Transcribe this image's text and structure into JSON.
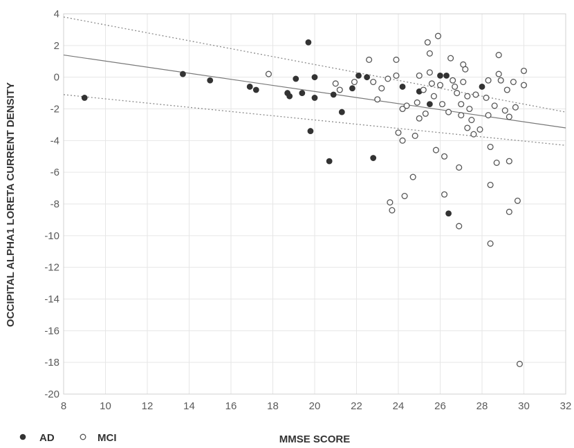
{
  "chart_data": {
    "type": "scatter",
    "title": "",
    "xlabel": "MMSE SCORE",
    "ylabel": "OCCIPITAL ALPHA1 LORETA CURRENT DENSITY",
    "xlim": [
      8,
      32
    ],
    "ylim": [
      -20,
      4
    ],
    "x_ticks": [
      8,
      10,
      12,
      14,
      16,
      18,
      20,
      22,
      24,
      26,
      28,
      30,
      32
    ],
    "y_ticks": [
      -20,
      -18,
      -16,
      -14,
      -12,
      -10,
      -8,
      -6,
      -4,
      -2,
      0,
      2,
      4
    ],
    "grid": true,
    "legend_position": "bottom-left",
    "series": [
      {
        "name": "AD",
        "marker": "filled-circle",
        "color": "#333333",
        "points": [
          [
            9,
            -1.3
          ],
          [
            13.7,
            0.2
          ],
          [
            15,
            -0.2
          ],
          [
            16.9,
            -0.6
          ],
          [
            17.2,
            -0.8
          ],
          [
            18.7,
            -1.0
          ],
          [
            18.8,
            -1.2
          ],
          [
            19.1,
            -0.1
          ],
          [
            19.4,
            -1.0
          ],
          [
            19.7,
            2.2
          ],
          [
            19.8,
            -3.4
          ],
          [
            20.0,
            0.0
          ],
          [
            20.0,
            -1.3
          ],
          [
            20.7,
            -5.3
          ],
          [
            20.9,
            -1.1
          ],
          [
            21.3,
            -2.2
          ],
          [
            21.8,
            -0.7
          ],
          [
            22.1,
            0.1
          ],
          [
            22.5,
            0.0
          ],
          [
            22.8,
            -5.1
          ],
          [
            24.2,
            -0.6
          ],
          [
            25.0,
            -0.9
          ],
          [
            25.5,
            -1.7
          ],
          [
            26.0,
            0.1
          ],
          [
            26.3,
            0.1
          ],
          [
            26.4,
            -8.6
          ],
          [
            28.0,
            -0.6
          ]
        ]
      },
      {
        "name": "MCI",
        "marker": "open-circle",
        "color": "#555555",
        "points": [
          [
            17.8,
            0.2
          ],
          [
            21.0,
            -0.4
          ],
          [
            21.2,
            -0.8
          ],
          [
            21.9,
            -0.3
          ],
          [
            22.6,
            1.1
          ],
          [
            22.8,
            -0.3
          ],
          [
            23.0,
            -1.4
          ],
          [
            23.2,
            -0.7
          ],
          [
            23.5,
            -0.1
          ],
          [
            23.6,
            -7.9
          ],
          [
            23.7,
            -8.4
          ],
          [
            23.9,
            1.1
          ],
          [
            23.9,
            0.1
          ],
          [
            24.0,
            -3.5
          ],
          [
            24.2,
            -2.0
          ],
          [
            24.2,
            -4.0
          ],
          [
            24.3,
            -7.5
          ],
          [
            24.4,
            -1.8
          ],
          [
            24.7,
            -6.3
          ],
          [
            24.8,
            -3.7
          ],
          [
            24.9,
            -1.6
          ],
          [
            25.0,
            0.1
          ],
          [
            25.0,
            -2.6
          ],
          [
            25.2,
            -0.8
          ],
          [
            25.3,
            -2.3
          ],
          [
            25.4,
            2.2
          ],
          [
            25.5,
            1.5
          ],
          [
            25.5,
            0.3
          ],
          [
            25.6,
            -0.4
          ],
          [
            25.7,
            -1.2
          ],
          [
            25.8,
            -4.6
          ],
          [
            25.9,
            2.6
          ],
          [
            26.0,
            -0.5
          ],
          [
            26.1,
            -1.7
          ],
          [
            26.2,
            -5.0
          ],
          [
            26.2,
            -7.4
          ],
          [
            26.4,
            -2.2
          ],
          [
            26.5,
            1.2
          ],
          [
            26.6,
            -0.2
          ],
          [
            26.7,
            -0.6
          ],
          [
            26.8,
            -1.0
          ],
          [
            26.9,
            -5.7
          ],
          [
            26.9,
            -9.4
          ],
          [
            27.0,
            -1.7
          ],
          [
            27.0,
            -2.4
          ],
          [
            27.1,
            0.8
          ],
          [
            27.1,
            -0.3
          ],
          [
            27.2,
            0.5
          ],
          [
            27.3,
            -1.2
          ],
          [
            27.3,
            -3.2
          ],
          [
            27.4,
            -2.0
          ],
          [
            27.5,
            -2.7
          ],
          [
            27.6,
            -3.6
          ],
          [
            27.7,
            -1.1
          ],
          [
            27.9,
            -3.3
          ],
          [
            28.2,
            -1.3
          ],
          [
            28.3,
            -0.2
          ],
          [
            28.3,
            -2.4
          ],
          [
            28.4,
            -4.4
          ],
          [
            28.4,
            -6.8
          ],
          [
            28.4,
            -10.5
          ],
          [
            28.6,
            -1.8
          ],
          [
            28.7,
            -5.4
          ],
          [
            28.8,
            1.4
          ],
          [
            28.8,
            0.2
          ],
          [
            28.9,
            -0.2
          ],
          [
            29.1,
            -2.1
          ],
          [
            29.2,
            -0.8
          ],
          [
            29.3,
            -2.5
          ],
          [
            29.3,
            -5.3
          ],
          [
            29.3,
            -8.5
          ],
          [
            29.5,
            -0.3
          ],
          [
            29.6,
            -1.9
          ],
          [
            29.7,
            -7.8
          ],
          [
            29.8,
            -18.1
          ],
          [
            30.0,
            0.4
          ],
          [
            30.0,
            -0.5
          ]
        ]
      }
    ],
    "regression": {
      "line": [
        [
          8,
          1.4
        ],
        [
          32,
          -3.2
        ]
      ],
      "ci_upper": [
        [
          8,
          3.8
        ],
        [
          32,
          -2.2
        ]
      ],
      "ci_lower": [
        [
          8,
          -1.1
        ],
        [
          32,
          -4.3
        ]
      ]
    }
  },
  "legend": {
    "ad_label": "AD",
    "mci_label": "MCI"
  },
  "colors": {
    "grid": "#e6e6e6",
    "frame": "#d0d0d0",
    "regression_line": "#777777",
    "confidence_band": "#8a8a8a"
  }
}
